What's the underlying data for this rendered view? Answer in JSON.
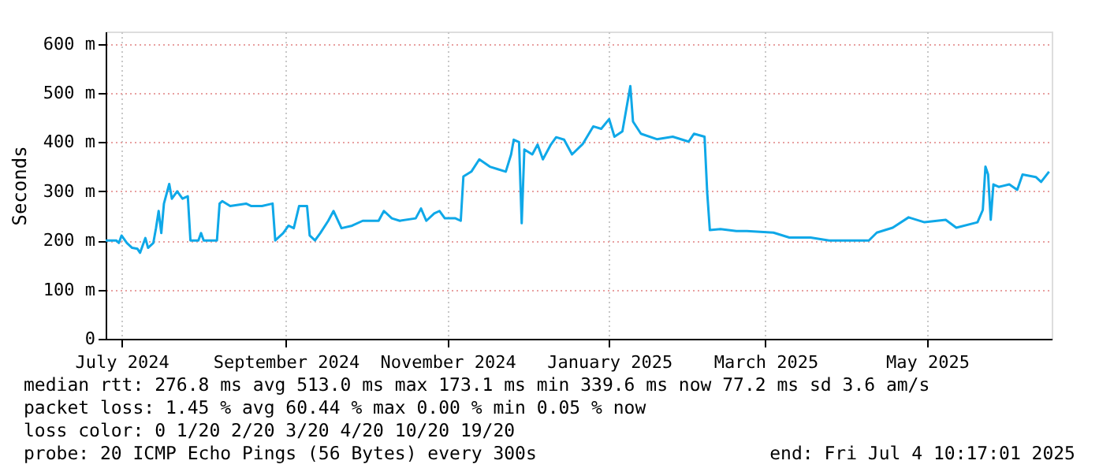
{
  "chart_data": {
    "type": "line",
    "ylabel": "Seconds",
    "xlim": [
      "2024-06-25",
      "2025-06-17"
    ],
    "xticks": [
      {
        "value": "2024-07-01",
        "label": "July 2024"
      },
      {
        "value": "2024-09-01",
        "label": "September 2024"
      },
      {
        "value": "2024-11-01",
        "label": "November 2024"
      },
      {
        "value": "2025-01-01",
        "label": "January 2025"
      },
      {
        "value": "2025-03-01",
        "label": "March 2025"
      },
      {
        "value": "2025-05-01",
        "label": "May 2025"
      }
    ],
    "ylim": [
      0,
      625
    ],
    "yticks": [
      0,
      {
        "value": 100,
        "label": "100 m"
      },
      {
        "value": 200,
        "label": "200 m"
      },
      {
        "value": 300,
        "label": "300 m"
      },
      {
        "value": 400,
        "label": "400 m"
      },
      {
        "value": 500,
        "label": "500 m"
      },
      {
        "value": 600,
        "label": "600 m"
      }
    ],
    "grid": true,
    "marker": "none",
    "line_style": "solid",
    "series": [
      {
        "color": "#0fa8e8",
        "x": [
          "2024-06-25",
          "2024-06-29",
          "2024-06-30",
          "2024-07-01",
          "2024-07-03",
          "2024-07-05",
          "2024-07-07",
          "2024-07-08",
          "2024-07-10",
          "2024-07-11",
          "2024-07-13",
          "2024-07-14",
          "2024-07-15",
          "2024-07-16",
          "2024-07-17",
          "2024-07-19",
          "2024-07-20",
          "2024-07-22",
          "2024-07-24",
          "2024-07-26",
          "2024-07-27",
          "2024-07-30",
          "2024-07-31",
          "2024-08-01",
          "2024-08-06",
          "2024-08-07",
          "2024-08-08",
          "2024-08-11",
          "2024-08-17",
          "2024-08-19",
          "2024-08-23",
          "2024-08-27",
          "2024-08-28",
          "2024-08-31",
          "2024-09-02",
          "2024-09-04",
          "2024-09-06",
          "2024-09-09",
          "2024-09-10",
          "2024-09-12",
          "2024-09-14",
          "2024-09-17",
          "2024-09-19",
          "2024-09-22",
          "2024-09-26",
          "2024-09-30",
          "2024-10-04",
          "2024-10-06",
          "2024-10-08",
          "2024-10-11",
          "2024-10-14",
          "2024-10-20",
          "2024-10-22",
          "2024-10-24",
          "2024-10-27",
          "2024-10-29",
          "2024-10-31",
          "2024-11-04",
          "2024-11-06",
          "2024-11-07",
          "2024-11-10",
          "2024-11-13",
          "2024-11-17",
          "2024-11-20",
          "2024-11-23",
          "2024-11-25",
          "2024-11-26",
          "2024-11-28",
          "2024-11-29",
          "2024-11-30",
          "2024-12-03",
          "2024-12-05",
          "2024-12-07",
          "2024-12-10",
          "2024-12-12",
          "2024-12-15",
          "2024-12-18",
          "2024-12-22",
          "2024-12-26",
          "2024-12-29",
          "2025-01-01",
          "2025-01-03",
          "2025-01-06",
          "2025-01-09",
          "2025-01-10",
          "2025-01-13",
          "2025-01-19",
          "2025-01-25",
          "2025-01-31",
          "2025-02-02",
          "2025-02-06",
          "2025-02-07",
          "2025-02-08",
          "2025-02-12",
          "2025-02-18",
          "2025-02-22",
          "2025-03-04",
          "2025-03-10",
          "2025-03-18",
          "2025-03-25",
          "2025-04-02",
          "2025-04-09",
          "2025-04-12",
          "2025-04-18",
          "2025-04-24",
          "2025-04-30",
          "2025-05-08",
          "2025-05-12",
          "2025-05-20",
          "2025-05-22",
          "2025-05-23",
          "2025-05-24",
          "2025-05-25",
          "2025-05-26",
          "2025-05-28",
          "2025-06-01",
          "2025-06-04",
          "2025-06-06",
          "2025-06-11",
          "2025-06-13",
          "2025-06-16"
        ],
        "values": [
          200,
          200,
          195,
          210,
          195,
          185,
          183,
          175,
          205,
          185,
          195,
          225,
          260,
          215,
          275,
          315,
          285,
          300,
          285,
          290,
          200,
          200,
          215,
          200,
          200,
          275,
          280,
          270,
          275,
          270,
          270,
          275,
          200,
          215,
          230,
          225,
          270,
          270,
          210,
          200,
          215,
          240,
          260,
          225,
          230,
          240,
          240,
          240,
          260,
          245,
          240,
          245,
          265,
          240,
          255,
          260,
          245,
          245,
          240,
          330,
          340,
          365,
          350,
          345,
          340,
          375,
          405,
          400,
          235,
          385,
          375,
          395,
          365,
          395,
          410,
          405,
          375,
          396,
          432,
          427,
          447,
          411,
          422,
          514,
          442,
          417,
          406,
          411,
          401,
          417,
          411,
          298,
          221,
          223,
          219,
          219,
          216,
          206,
          206,
          200,
          200,
          200,
          216,
          226,
          247,
          237,
          242,
          226,
          237,
          262,
          350,
          334,
          242,
          314,
          309,
          314,
          303,
          334,
          329,
          319,
          340
        ]
      }
    ],
    "annotations": [
      "median rtt:  276.8 ms avg  513.0 ms max  173.1 ms min  339.6 ms now  77.2 ms sd  3.6   am/s",
      "packet loss: 1.45 % avg  60.44 % max  0.00 % min  0.05 % now",
      "loss color:  0  1/20  2/20  3/20  4/20  10/20  19/20",
      "probe:       20 ICMP Echo Pings (56 Bytes) every 300s",
      "end: Fri Jul  4 10:17:01 2025"
    ]
  }
}
